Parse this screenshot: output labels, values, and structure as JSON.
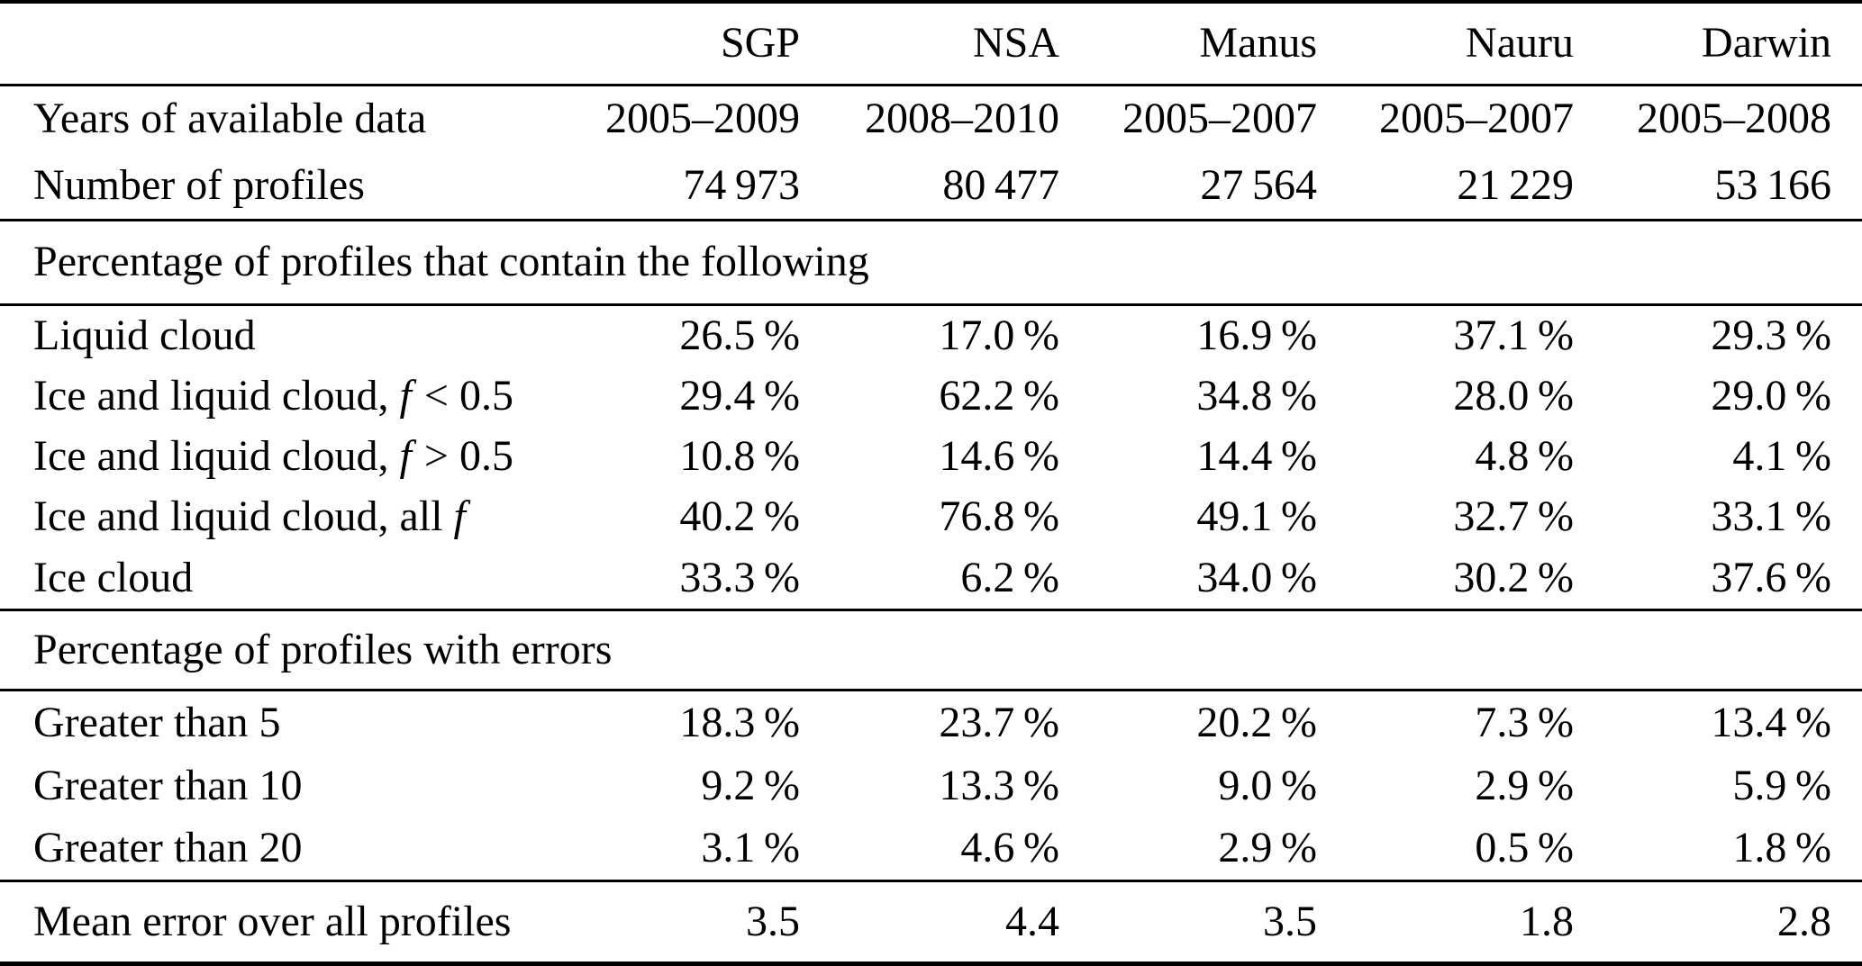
{
  "columns": [
    "SGP",
    "NSA",
    "Manus",
    "Nauru",
    "Darwin"
  ],
  "info_rows": [
    {
      "label": "Years of available data",
      "values": [
        "2005–2009",
        "2008–2010",
        "2005–2007",
        "2005–2007",
        "2005–2008"
      ]
    },
    {
      "label": "Number of profiles",
      "values": [
        "74 973",
        "80 477",
        "27 564",
        "21 229",
        "53 166"
      ]
    }
  ],
  "sections": [
    {
      "title": "Percentage of profiles that contain the following",
      "rows": [
        {
          "label_parts": [
            {
              "text": "Liquid cloud",
              "italic": false
            }
          ],
          "values": [
            "26.5 %",
            "17.0 %",
            "16.9 %",
            "37.1 %",
            "29.3 %"
          ]
        },
        {
          "label_parts": [
            {
              "text": "Ice and liquid cloud, ",
              "italic": false
            },
            {
              "text": "f",
              "italic": true
            },
            {
              "text": " < 0.5",
              "italic": false
            }
          ],
          "values": [
            "29.4 %",
            "62.2 %",
            "34.8 %",
            "28.0 %",
            "29.0 %"
          ]
        },
        {
          "label_parts": [
            {
              "text": "Ice and liquid cloud, ",
              "italic": false
            },
            {
              "text": "f",
              "italic": true
            },
            {
              "text": " > 0.5",
              "italic": false
            }
          ],
          "values": [
            "10.8 %",
            "14.6 %",
            "14.4 %",
            "4.8 %",
            "4.1 %"
          ]
        },
        {
          "label_parts": [
            {
              "text": "Ice and liquid cloud, all ",
              "italic": false
            },
            {
              "text": "f",
              "italic": true
            }
          ],
          "values": [
            "40.2 %",
            "76.8 %",
            "49.1 %",
            "32.7 %",
            "33.1 %"
          ]
        },
        {
          "label_parts": [
            {
              "text": "Ice cloud",
              "italic": false
            }
          ],
          "values": [
            "33.3 %",
            "6.2 %",
            "34.0 %",
            "30.2 %",
            "37.6 %"
          ]
        }
      ]
    },
    {
      "title": "Percentage of profiles with errors",
      "rows": [
        {
          "label_parts": [
            {
              "text": "Greater than 5",
              "italic": false
            }
          ],
          "values": [
            "18.3 %",
            "23.7 %",
            "20.2 %",
            "7.3 %",
            "13.4 %"
          ]
        },
        {
          "label_parts": [
            {
              "text": "Greater than 10",
              "italic": false
            }
          ],
          "values": [
            "9.2 %",
            "13.3 %",
            "9.0 %",
            "2.9 %",
            "5.9 %"
          ]
        },
        {
          "label_parts": [
            {
              "text": "Greater than 20",
              "italic": false
            }
          ],
          "values": [
            "3.1 %",
            "4.6 %",
            "2.9 %",
            "0.5 %",
            "1.8 %"
          ]
        }
      ]
    }
  ],
  "footer": {
    "label": "Mean error over all profiles",
    "values": [
      "3.5",
      "4.4",
      "3.5",
      "1.8",
      "2.8"
    ]
  }
}
